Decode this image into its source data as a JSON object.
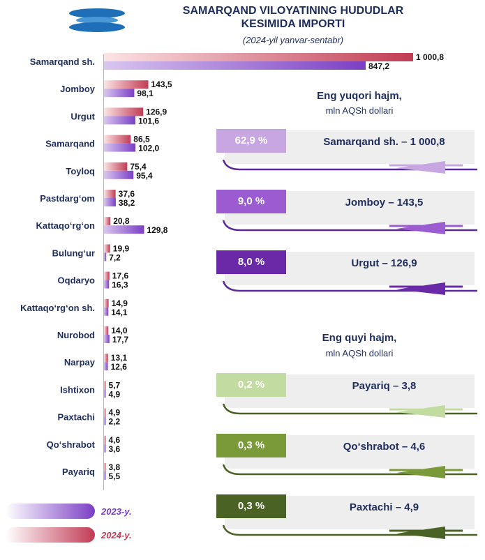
{
  "header": {
    "title_line1": "SAMARQAND VILOYATINING HUDUDLAR",
    "title_line2": "KESIMIDA IMPORTI",
    "subtitle": "(2024-yil yanvar-sentabr)"
  },
  "colors": {
    "y2024": "#c23b55",
    "y2023": "#7b3fc4"
  },
  "chart_data": {
    "type": "bar",
    "orientation": "horizontal",
    "categories": [
      "Samarqand sh.",
      "Jomboy",
      "Urgut",
      "Samarqand",
      "Toyloq",
      "Pastdarg‘om",
      "Kattaqo‘rg‘on",
      "Bulung‘ur",
      "Oqdaryo",
      "Kattaqo‘rg‘on sh.",
      "Nurobod",
      "Narpay",
      "Ishtixon",
      "Paxtachi",
      "Qo‘shrabot",
      "Payariq"
    ],
    "series": [
      {
        "name": "2024-y.",
        "values": [
          1000.8,
          143.5,
          126.9,
          86.5,
          75.4,
          37.6,
          20.8,
          19.9,
          17.6,
          14.9,
          14.0,
          13.1,
          5.7,
          4.9,
          4.6,
          3.8
        ],
        "labels": [
          "1 000,8",
          "143,5",
          "126,9",
          "86,5",
          "75,4",
          "37,6",
          "20,8",
          "19,9",
          "17,6",
          "14,9",
          "14,0",
          "13,1",
          "5,7",
          "4,9",
          "4,6",
          "3,8"
        ]
      },
      {
        "name": "2023-y.",
        "values": [
          847.2,
          98.1,
          101.6,
          102.0,
          95.4,
          38.2,
          129.8,
          7.2,
          16.3,
          14.1,
          17.7,
          12.6,
          4.9,
          2.2,
          3.6,
          5.5
        ],
        "labels": [
          "847,2",
          "98,1",
          "101,6",
          "102,0",
          "95,4",
          "38,2",
          "129,8",
          "7,2",
          "16,3",
          "14,1",
          "17,7",
          "12,6",
          "4,9",
          "2,2",
          "3,6",
          "5,5"
        ]
      }
    ],
    "grid": false
  },
  "legend": {
    "y2023": "2023-y.",
    "y2024": "2024-y."
  },
  "top": {
    "title": "Eng yuqori hajm,",
    "unit": "mln AQSh dollari",
    "items": [
      {
        "pct": "62,9 %",
        "text": "Samarqand sh. – 1 000,8",
        "color": "#c8a6e2"
      },
      {
        "pct": "9,0 %",
        "text": "Jomboy – 143,5",
        "color": "#9a5cd0"
      },
      {
        "pct": "8,0 %",
        "text": "Urgut – 126,9",
        "color": "#6a2aa8"
      }
    ]
  },
  "bottom": {
    "title": "Eng quyi hajm,",
    "unit": "mln AQSh dollari",
    "items": [
      {
        "pct": "0,2 %",
        "text": "Payariq – 3,8",
        "color": "#c2dba0"
      },
      {
        "pct": "0,3 %",
        "text": "Qo‘shrabot – 4,6",
        "color": "#7a9a3a"
      },
      {
        "pct": "0,3 %",
        "text": "Paxtachi – 4,9",
        "color": "#4a6224"
      }
    ]
  }
}
